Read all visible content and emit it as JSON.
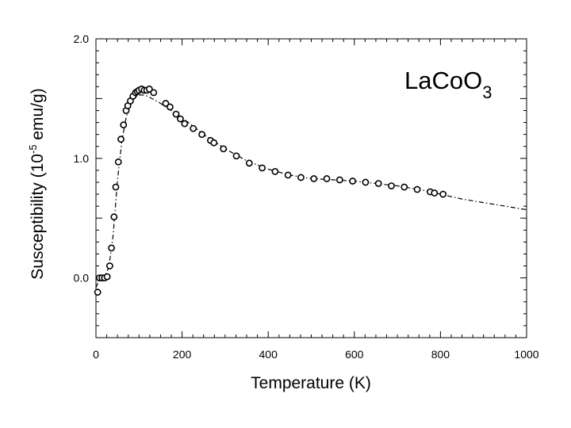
{
  "chart_data": {
    "type": "scatter",
    "title": "",
    "annotation": {
      "main": "La",
      "parts": [
        "Co",
        "O"
      ],
      "subscript": "3"
    },
    "xlabel": "Temperature (K)",
    "ylabel": {
      "prefix": "Susceptibility (10",
      "superscript": "-5",
      "suffix": " emu/g)"
    },
    "xlim": [
      0,
      1000
    ],
    "ylim": [
      -0.5,
      2.0
    ],
    "x_ticks": [
      {
        "value": 0,
        "label": "0"
      },
      {
        "value": 200,
        "label": "200"
      },
      {
        "value": 400,
        "label": "400"
      },
      {
        "value": 600,
        "label": "600"
      },
      {
        "value": 800,
        "label": "800"
      },
      {
        "value": 1000,
        "label": "1000"
      }
    ],
    "y_ticks": [
      {
        "value": 0.0,
        "label": "0.0"
      },
      {
        "value": 1.0,
        "label": "1.0"
      },
      {
        "value": 2.0,
        "label": "2.0"
      }
    ],
    "grid": false,
    "series": [
      {
        "style": "open-circle markers",
        "x": [
          4,
          8,
          14,
          20,
          26,
          32,
          36,
          42,
          46,
          52,
          58,
          64,
          70,
          74,
          80,
          86,
          92,
          96,
          100,
          106,
          112,
          118,
          124,
          134,
          162,
          172,
          186,
          196,
          206,
          226,
          246,
          266,
          274,
          296,
          326,
          356,
          386,
          416,
          446,
          476,
          506,
          536,
          566,
          596,
          626,
          656,
          686,
          716,
          746,
          776,
          786,
          806
        ],
        "y": [
          -0.12,
          0.0,
          0.0,
          0.0,
          0.01,
          0.1,
          0.25,
          0.51,
          0.76,
          0.97,
          1.16,
          1.28,
          1.4,
          1.44,
          1.48,
          1.52,
          1.55,
          1.56,
          1.57,
          1.58,
          1.57,
          1.57,
          1.58,
          1.55,
          1.46,
          1.43,
          1.37,
          1.33,
          1.29,
          1.25,
          1.2,
          1.15,
          1.13,
          1.08,
          1.02,
          0.96,
          0.92,
          0.89,
          0.86,
          0.84,
          0.83,
          0.83,
          0.82,
          0.81,
          0.8,
          0.79,
          0.77,
          0.76,
          0.74,
          0.72,
          0.71,
          0.7
        ]
      },
      {
        "style": "dash-dot fit curve",
        "x": [
          0,
          10,
          20,
          30,
          40,
          50,
          60,
          70,
          80,
          90,
          100,
          110,
          120,
          130,
          150,
          175,
          200,
          250,
          300,
          350,
          400,
          450,
          500,
          550,
          600,
          650,
          700,
          750,
          800,
          850,
          900,
          950,
          1000
        ],
        "y": [
          -0.08,
          0.0,
          0.01,
          0.09,
          0.36,
          0.82,
          1.14,
          1.34,
          1.46,
          1.51,
          1.53,
          1.53,
          1.52,
          1.5,
          1.46,
          1.4,
          1.34,
          1.2,
          1.08,
          0.98,
          0.91,
          0.86,
          0.83,
          0.82,
          0.81,
          0.79,
          0.77,
          0.74,
          0.7,
          0.66,
          0.63,
          0.6,
          0.57
        ]
      }
    ]
  }
}
